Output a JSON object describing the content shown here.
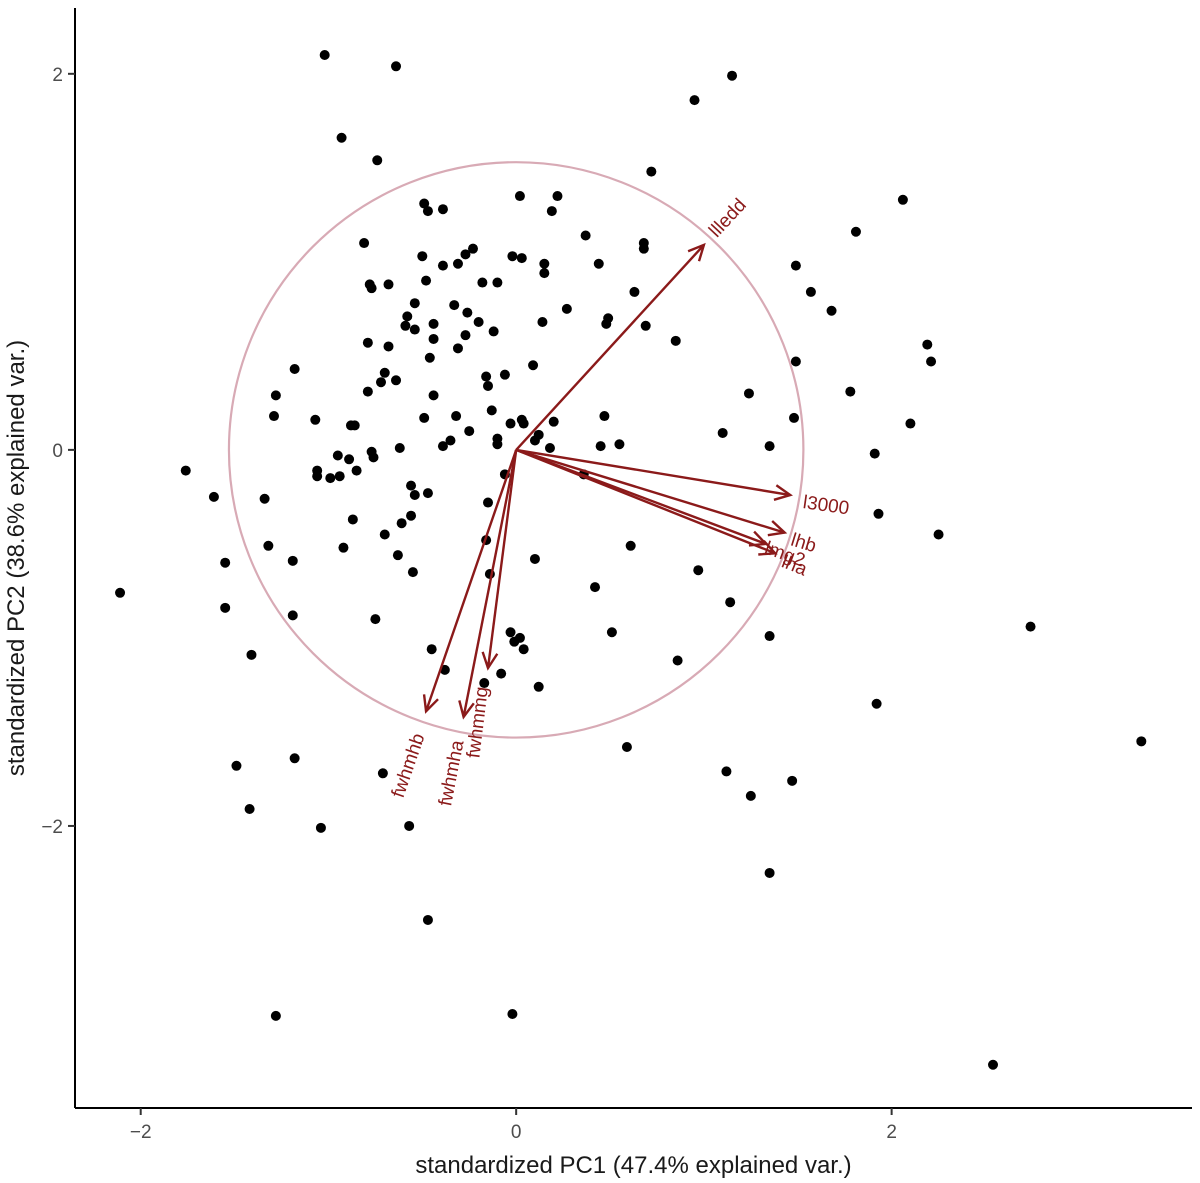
{
  "chart_data": {
    "type": "scatter",
    "subtype": "pca-biplot",
    "xlabel": "standardized PC1 (47.4% explained var.)",
    "ylabel": "standardized PC2 (38.6% explained var.)",
    "xlim": [
      -2.35,
      3.6
    ],
    "ylim": [
      -3.5,
      2.35
    ],
    "x_ticks": [
      -2,
      0,
      2
    ],
    "y_ticks": [
      -2,
      0,
      2
    ],
    "x_tick_labels": [
      "−2",
      "0",
      "2"
    ],
    "y_tick_labels": [
      "−2",
      "0",
      "2"
    ],
    "grid": false,
    "point_color": "#000000",
    "arrow_color": "#8b1a1a",
    "circle_color": "#d8aab5",
    "circle_radius": 1.53,
    "points": [
      [
        -1.02,
        2.1
      ],
      [
        -0.64,
        2.04
      ],
      [
        1.15,
        1.99
      ],
      [
        0.95,
        1.86
      ],
      [
        -0.93,
        1.66
      ],
      [
        -0.74,
        1.54
      ],
      [
        0.72,
        1.48
      ],
      [
        2.06,
        1.33
      ],
      [
        0.02,
        1.35
      ],
      [
        0.22,
        1.35
      ],
      [
        -0.49,
        1.31
      ],
      [
        -0.47,
        1.27
      ],
      [
        -0.39,
        1.28
      ],
      [
        0.19,
        1.27
      ],
      [
        1.81,
        1.16
      ],
      [
        -0.81,
        1.1
      ],
      [
        0.37,
        1.14
      ],
      [
        0.68,
        1.1
      ],
      [
        0.68,
        1.07
      ],
      [
        -0.23,
        1.07
      ],
      [
        -0.27,
        1.04
      ],
      [
        -0.5,
        1.03
      ],
      [
        -0.31,
        0.99
      ],
      [
        -0.02,
        1.03
      ],
      [
        0.03,
        1.02
      ],
      [
        0.15,
        0.99
      ],
      [
        0.44,
        0.99
      ],
      [
        1.49,
        0.98
      ],
      [
        -0.39,
        0.98
      ],
      [
        0.15,
        0.94
      ],
      [
        -0.48,
        0.9
      ],
      [
        -0.18,
        0.89
      ],
      [
        -0.1,
        0.89
      ],
      [
        -0.78,
        0.88
      ],
      [
        -0.68,
        0.88
      ],
      [
        -0.77,
        0.86
      ],
      [
        0.63,
        0.84
      ],
      [
        1.57,
        0.84
      ],
      [
        -0.54,
        0.78
      ],
      [
        -0.33,
        0.77
      ],
      [
        0.27,
        0.75
      ],
      [
        1.68,
        0.74
      ],
      [
        -0.58,
        0.71
      ],
      [
        0.49,
        0.7
      ],
      [
        -0.26,
        0.73
      ],
      [
        -0.59,
        0.66
      ],
      [
        0.14,
        0.68
      ],
      [
        -0.2,
        0.68
      ],
      [
        -0.44,
        0.67
      ],
      [
        0.69,
        0.66
      ],
      [
        0.48,
        0.67
      ],
      [
        -0.54,
        0.64
      ],
      [
        -0.12,
        0.63
      ],
      [
        0.85,
        0.58
      ],
      [
        -0.79,
        0.57
      ],
      [
        -0.68,
        0.55
      ],
      [
        -0.27,
        0.61
      ],
      [
        -0.44,
        0.59
      ],
      [
        -0.31,
        0.54
      ],
      [
        2.19,
        0.56
      ],
      [
        -0.46,
        0.49
      ],
      [
        2.21,
        0.47
      ],
      [
        1.49,
        0.47
      ],
      [
        -1.18,
        0.43
      ],
      [
        -0.7,
        0.41
      ],
      [
        0.09,
        0.45
      ],
      [
        -0.72,
        0.36
      ],
      [
        -0.64,
        0.37
      ],
      [
        -0.16,
        0.39
      ],
      [
        -0.06,
        0.4
      ],
      [
        -0.15,
        0.34
      ],
      [
        -0.79,
        0.31
      ],
      [
        -1.28,
        0.29
      ],
      [
        1.24,
        0.3
      ],
      [
        1.78,
        0.31
      ],
      [
        -0.44,
        0.29
      ],
      [
        -0.13,
        0.21
      ],
      [
        -0.32,
        0.18
      ],
      [
        -0.88,
        0.13
      ],
      [
        -0.86,
        0.13
      ],
      [
        -0.49,
        0.17
      ],
      [
        -1.29,
        0.18
      ],
      [
        -1.07,
        0.16
      ],
      [
        0.03,
        0.16
      ],
      [
        0.04,
        0.14
      ],
      [
        -0.03,
        0.14
      ],
      [
        0.2,
        0.15
      ],
      [
        1.48,
        0.17
      ],
      [
        0.47,
        0.18
      ],
      [
        2.1,
        0.14
      ],
      [
        -0.25,
        0.1
      ],
      [
        0.12,
        0.08
      ],
      [
        1.1,
        0.09
      ],
      [
        -0.35,
        0.05
      ],
      [
        -0.1,
        0.06
      ],
      [
        -0.1,
        0.03
      ],
      [
        -0.77,
        -0.01
      ],
      [
        0.55,
        0.03
      ],
      [
        0.18,
        0.01
      ],
      [
        0.1,
        0.05
      ],
      [
        -0.62,
        0.01
      ],
      [
        -0.39,
        0.02
      ],
      [
        0.45,
        0.02
      ],
      [
        1.35,
        0.02
      ],
      [
        -0.95,
        -0.03
      ],
      [
        -0.89,
        -0.05
      ],
      [
        -0.76,
        -0.04
      ],
      [
        -1.06,
        -0.11
      ],
      [
        -1.06,
        -0.14
      ],
      [
        -0.99,
        -0.15
      ],
      [
        -0.94,
        -0.14
      ],
      [
        -0.85,
        -0.11
      ],
      [
        -0.06,
        -0.13
      ],
      [
        1.91,
        -0.02
      ],
      [
        -1.76,
        -0.11
      ],
      [
        0.36,
        -0.13
      ],
      [
        -0.56,
        -0.19
      ],
      [
        -0.54,
        -0.24
      ],
      [
        -0.47,
        -0.23
      ],
      [
        -0.15,
        -0.28
      ],
      [
        -1.61,
        -0.25
      ],
      [
        1.93,
        -0.34
      ],
      [
        -1.34,
        -0.26
      ],
      [
        -0.56,
        -0.35
      ],
      [
        -0.87,
        -0.37
      ],
      [
        -0.61,
        -0.39
      ],
      [
        -0.7,
        -0.45
      ],
      [
        -0.16,
        -0.48
      ],
      [
        -0.92,
        -0.52
      ],
      [
        -1.32,
        -0.51
      ],
      [
        0.61,
        -0.51
      ],
      [
        2.25,
        -0.45
      ],
      [
        -0.63,
        -0.56
      ],
      [
        -1.55,
        -0.6
      ],
      [
        -1.19,
        -0.59
      ],
      [
        0.1,
        -0.58
      ],
      [
        -0.55,
        -0.65
      ],
      [
        -0.14,
        -0.66
      ],
      [
        0.97,
        -0.64
      ],
      [
        0.42,
        -0.73
      ],
      [
        -2.11,
        -0.76
      ],
      [
        -1.55,
        -0.84
      ],
      [
        -1.19,
        -0.88
      ],
      [
        1.14,
        -0.81
      ],
      [
        2.74,
        -0.94
      ],
      [
        -0.75,
        -0.9
      ],
      [
        0.51,
        -0.97
      ],
      [
        1.35,
        -0.99
      ],
      [
        -0.45,
        -1.06
      ],
      [
        0.02,
        -1.0
      ],
      [
        -0.03,
        -0.97
      ],
      [
        -0.01,
        -1.02
      ],
      [
        0.04,
        -1.06
      ],
      [
        -1.41,
        -1.09
      ],
      [
        -0.38,
        -1.17
      ],
      [
        0.86,
        -1.12
      ],
      [
        -0.08,
        -1.19
      ],
      [
        0.12,
        -1.26
      ],
      [
        -0.17,
        -1.24
      ],
      [
        1.92,
        -1.35
      ],
      [
        3.33,
        -1.55
      ],
      [
        0.59,
        -1.58
      ],
      [
        -1.49,
        -1.68
      ],
      [
        -1.18,
        -1.64
      ],
      [
        -0.71,
        -1.72
      ],
      [
        1.12,
        -1.71
      ],
      [
        1.47,
        -1.76
      ],
      [
        1.25,
        -1.84
      ],
      [
        -1.42,
        -1.91
      ],
      [
        -1.04,
        -2.01
      ],
      [
        -0.57,
        -2.0
      ],
      [
        1.35,
        -2.25
      ],
      [
        -0.47,
        -2.5
      ],
      [
        -1.28,
        -3.01
      ],
      [
        -0.02,
        -3.0
      ],
      [
        2.54,
        -3.27
      ]
    ],
    "arrows": [
      {
        "name": "llledd",
        "x": 1.0,
        "y": 1.09
      },
      {
        "name": "l3000",
        "x": 1.46,
        "y": -0.24
      },
      {
        "name": "lhb",
        "x": 1.43,
        "y": -0.44
      },
      {
        "name": "lmg2",
        "x": 1.33,
        "y": -0.5
      },
      {
        "name": "lha",
        "x": 1.38,
        "y": -0.55
      },
      {
        "name": "fwhmhb",
        "x": -0.48,
        "y": -1.39
      },
      {
        "name": "fwhmha",
        "x": -0.28,
        "y": -1.42
      },
      {
        "name": "fwhmmg",
        "x": -0.15,
        "y": -1.16
      }
    ],
    "arrow_labels": [
      {
        "text": "llledd",
        "x": 1.13,
        "y": 1.23,
        "angle": -47
      },
      {
        "text": "l3000",
        "x": 1.65,
        "y": -0.3,
        "angle": 8
      },
      {
        "text": "lhb",
        "x": 1.53,
        "y": -0.5,
        "angle": 17
      },
      {
        "text": "lmg2",
        "x": 1.43,
        "y": -0.56,
        "angle": 20
      },
      {
        "text": "lha",
        "x": 1.48,
        "y": -0.62,
        "angle": 22
      },
      {
        "text": "fwhmhb",
        "x": -0.57,
        "y": -1.68,
        "angle": -71
      },
      {
        "text": "fwhmha",
        "x": -0.34,
        "y": -1.72,
        "angle": -79
      },
      {
        "text": "fwhmmg",
        "x": -0.2,
        "y": -1.45,
        "angle": -83
      }
    ]
  }
}
